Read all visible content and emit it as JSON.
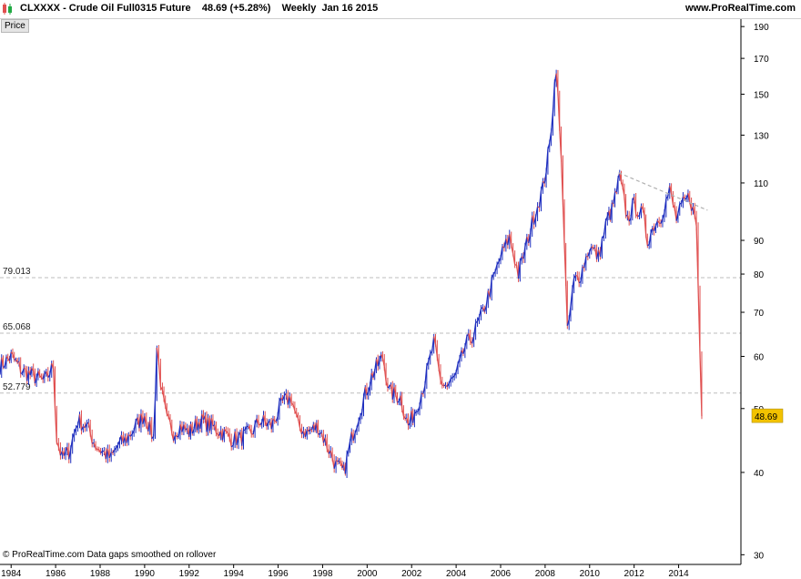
{
  "header": {
    "title": "CLXXXX - Crude Oil Full0315 Future    48.69 (+5.28%)    Weekly  Jan 16 2015",
    "site": "www.ProRealTime.com",
    "tab_label": "Price"
  },
  "footer": {
    "note": "© ProRealTime.com  Data gaps smoothed on rollover"
  },
  "colors": {
    "up": "#1f2fbf",
    "down": "#e05050",
    "hline": "#bdbdbd",
    "trend": "#b0b0b0",
    "last_price_bg": "#f2c200"
  },
  "chart_data": {
    "type": "line",
    "title": "CLXXXX - Crude Oil Full0315 Future",
    "frequency": "Weekly",
    "y_scale": "log",
    "ylim": [
      29,
      195
    ],
    "xlim": [
      1983.5,
      2016.8
    ],
    "x_ticks": [
      "1984",
      "1986",
      "1988",
      "1990",
      "1992",
      "1994",
      "1996",
      "1998",
      "2000",
      "2002",
      "2004",
      "2006",
      "2008",
      "2010",
      "2012",
      "2014"
    ],
    "x_tick_values": [
      1984,
      1986,
      1988,
      1990,
      1992,
      1994,
      1996,
      1998,
      2000,
      2002,
      2004,
      2006,
      2008,
      2010,
      2012,
      2014
    ],
    "y_ticks": [
      190,
      170,
      150,
      130,
      110,
      90,
      80,
      70,
      60,
      50,
      40,
      30
    ],
    "last_price": "48.69",
    "last_price_value": 48.69,
    "horizontal_lines": [
      {
        "label": "79.013",
        "value": 79.013
      },
      {
        "label": "65.068",
        "value": 65.068
      },
      {
        "label": "52.779",
        "value": 52.779
      }
    ],
    "trendline": {
      "x": [
        2011.3,
        2015.3
      ],
      "y": [
        114,
        100
      ]
    },
    "series": [
      {
        "x": [
          1983.5,
          1984.0,
          1984.5,
          1985.0,
          1985.5,
          1985.9,
          1986.05,
          1986.3,
          1986.6,
          1987.0,
          1987.4,
          1987.8,
          1988.1,
          1988.5,
          1988.8,
          1989.2,
          1989.6,
          1990.0,
          1990.4,
          1990.55,
          1990.8,
          1991.0,
          1991.3,
          1991.6,
          1992.0,
          1992.5,
          1993.0,
          1993.5,
          1993.9,
          1994.3,
          1994.8,
          1995.2,
          1995.7,
          1996.2,
          1996.6,
          1996.9,
          1997.3,
          1997.8,
          1998.2,
          1998.6,
          1998.95,
          1999.3,
          1999.7,
          2000.2,
          2000.7,
          2001.0,
          2001.5,
          2001.85,
          2002.2,
          2002.6,
          2003.0,
          2003.3,
          2003.6,
          2004.0,
          2004.4,
          2004.8,
          2005.2,
          2005.6,
          2006.0,
          2006.4,
          2006.8,
          2007.1,
          2007.5,
          2007.9,
          2008.2,
          2008.5,
          2008.8,
          2009.0,
          2009.3,
          2009.6,
          2010.0,
          2010.4,
          2010.8,
          2011.0,
          2011.35,
          2011.7,
          2012.0,
          2012.4,
          2012.6,
          2012.9,
          2013.2,
          2013.6,
          2013.9,
          2014.2,
          2014.5,
          2014.8,
          2015.04
        ],
        "values": [
          58,
          60,
          57,
          56,
          55,
          58,
          45,
          42,
          43,
          48,
          47,
          44,
          43,
          42,
          44,
          45,
          47,
          49,
          45,
          62,
          52,
          48,
          46,
          47,
          46,
          48,
          47,
          46,
          45,
          45,
          46,
          48,
          47,
          51,
          52,
          47,
          46,
          47,
          44,
          41,
          40,
          45,
          50,
          56,
          60,
          53,
          52,
          47,
          50,
          55,
          63,
          55,
          54,
          56,
          62,
          65,
          70,
          77,
          85,
          91,
          80,
          87,
          98,
          108,
          125,
          166,
          105,
          65,
          78,
          80,
          88,
          85,
          97,
          100,
          112,
          97,
          102,
          98,
          90,
          95,
          98,
          107,
          97,
          102,
          105,
          95,
          48.69
        ]
      }
    ]
  }
}
